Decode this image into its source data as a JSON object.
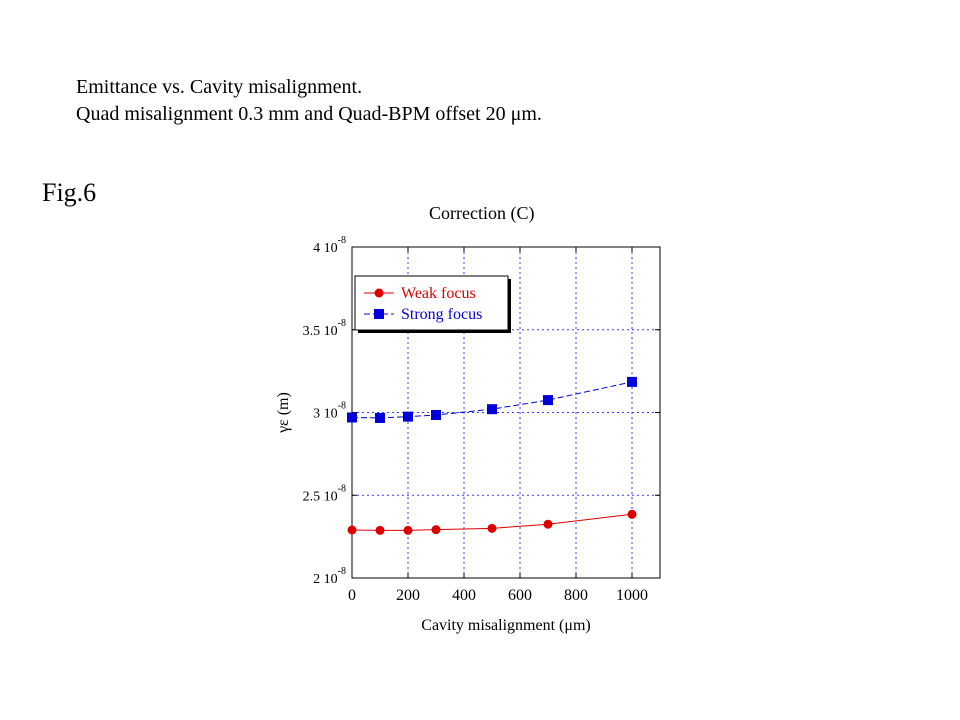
{
  "header": {
    "line1": "Emittance vs. Cavity misalignment.",
    "line2": "Quad misalignment 0.3 mm and Quad-BPM offset 20 μm."
  },
  "figure_label": "Fig.6",
  "chart_data": {
    "type": "line",
    "title": "Correction (C)",
    "xlabel": "Cavity misalignment (μm)",
    "ylabel": "γε (m)",
    "xlim": [
      0,
      1100
    ],
    "ylim": [
      2e-08,
      4e-08
    ],
    "x_ticks": [
      0,
      200,
      400,
      600,
      800,
      1000
    ],
    "y_ticks": [
      2e-08,
      2.5e-08,
      3e-08,
      3.5e-08,
      4e-08
    ],
    "y_tick_labels": [
      {
        "mantissa": "2 10",
        "exp": "-8"
      },
      {
        "mantissa": "2.5 10",
        "exp": "-8"
      },
      {
        "mantissa": "3 10",
        "exp": "-8"
      },
      {
        "mantissa": "3.5 10",
        "exp": "-8"
      },
      {
        "mantissa": "4 10",
        "exp": "-8"
      }
    ],
    "grid": true,
    "legend_position": "top-left",
    "series": [
      {
        "name": "Weak focus",
        "color": "#dd0000",
        "marker": "circle",
        "line": "solid",
        "x": [
          0,
          100,
          200,
          300,
          500,
          700,
          1000
        ],
        "y": [
          2.29e-08,
          2.288e-08,
          2.288e-08,
          2.292e-08,
          2.3e-08,
          2.325e-08,
          2.385e-08
        ]
      },
      {
        "name": "Strong focus",
        "color": "#0000dd",
        "marker": "square",
        "line": "dashed",
        "x": [
          0,
          100,
          200,
          300,
          500,
          700,
          1000
        ],
        "y": [
          2.97e-08,
          2.967e-08,
          2.975e-08,
          2.985e-08,
          3.02e-08,
          3.075e-08,
          3.185e-08
        ]
      }
    ]
  }
}
